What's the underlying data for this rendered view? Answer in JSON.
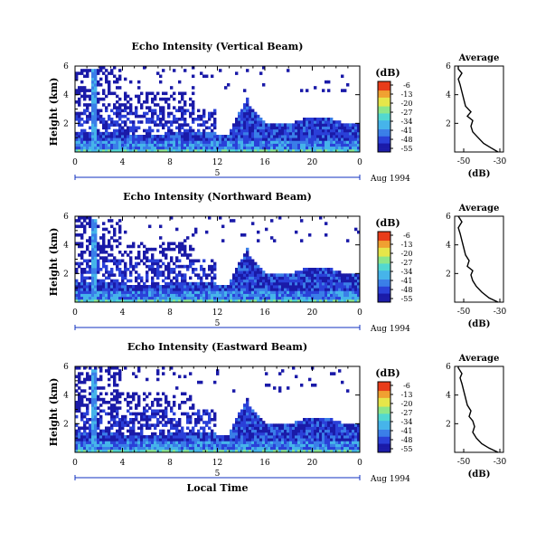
{
  "chart_data": [
    {
      "type": "heatmap",
      "title": "Echo Intensity (Vertical Beam)",
      "ylabel": "Height (km)",
      "xlabel": "",
      "y_ticks": [
        "6",
        "4",
        "2"
      ],
      "x_ticks": [
        "0",
        "4",
        "8",
        "12",
        "16",
        "20",
        "0"
      ],
      "xlim": [
        0,
        24
      ],
      "ylim": [
        0,
        6
      ],
      "day_label": "5",
      "date_label": "Aug 1994",
      "colorbar": {
        "unit": "(dB)",
        "ticks": [
          "-6",
          "-13",
          "-20",
          "-27",
          "-34",
          "-41",
          "-48",
          "-55"
        ]
      },
      "profile": {
        "title": "Average",
        "xlabel": "(dB)",
        "x_ticks": [
          "-50",
          "-30"
        ],
        "y_ticks": [
          "6",
          "4",
          "2"
        ],
        "xlim": [
          -55,
          -28
        ],
        "ylim": [
          0,
          6
        ],
        "points": [
          [
            -31,
            0
          ],
          [
            -35,
            0.3
          ],
          [
            -39,
            0.6
          ],
          [
            -42,
            1.0
          ],
          [
            -45,
            1.4
          ],
          [
            -46,
            1.8
          ],
          [
            -45,
            2.2
          ],
          [
            -48,
            2.5
          ],
          [
            -46,
            2.8
          ],
          [
            -49,
            3.2
          ],
          [
            -50,
            3.7
          ],
          [
            -51,
            4.2
          ],
          [
            -52,
            4.7
          ],
          [
            -53,
            5.1
          ],
          [
            -51,
            5.5
          ],
          [
            -53,
            5.8
          ],
          [
            -53,
            6.0
          ]
        ]
      }
    },
    {
      "type": "heatmap",
      "title": "Echo Intensity (Northward Beam)",
      "ylabel": "Height (km)",
      "xlabel": "",
      "y_ticks": [
        "6",
        "4",
        "2"
      ],
      "x_ticks": [
        "0",
        "4",
        "8",
        "12",
        "16",
        "20",
        "0"
      ],
      "xlim": [
        0,
        24
      ],
      "ylim": [
        0,
        6
      ],
      "day_label": "5",
      "date_label": "Aug 1994",
      "colorbar": {
        "unit": "(dB)",
        "ticks": [
          "-6",
          "-13",
          "-20",
          "-27",
          "-34",
          "-41",
          "-48",
          "-55"
        ]
      },
      "profile": {
        "title": "Average",
        "xlabel": "(dB)",
        "x_ticks": [
          "-50",
          "-30"
        ],
        "y_ticks": [
          "6",
          "4",
          "2"
        ],
        "xlim": [
          -55,
          -28
        ],
        "ylim": [
          0,
          6
        ],
        "points": [
          [
            -31,
            0
          ],
          [
            -36,
            0.3
          ],
          [
            -40,
            0.7
          ],
          [
            -43,
            1.1
          ],
          [
            -45,
            1.5
          ],
          [
            -46,
            1.9
          ],
          [
            -45,
            2.2
          ],
          [
            -48,
            2.5
          ],
          [
            -47,
            2.9
          ],
          [
            -49,
            3.3
          ],
          [
            -50,
            3.8
          ],
          [
            -51,
            4.3
          ],
          [
            -52,
            4.8
          ],
          [
            -53,
            5.2
          ],
          [
            -51,
            5.6
          ],
          [
            -53,
            6.0
          ]
        ]
      }
    },
    {
      "type": "heatmap",
      "title": "Echo Intensity (Eastward Beam)",
      "ylabel": "Height (km)",
      "xlabel": "Local Time",
      "y_ticks": [
        "6",
        "4",
        "2"
      ],
      "x_ticks": [
        "0",
        "4",
        "8",
        "12",
        "16",
        "20",
        "0"
      ],
      "xlim": [
        0,
        24
      ],
      "ylim": [
        0,
        6
      ],
      "day_label": "5",
      "date_label": "Aug 1994",
      "colorbar": {
        "unit": "(dB)",
        "ticks": [
          "-6",
          "-13",
          "-20",
          "-27",
          "-34",
          "-41",
          "-48",
          "-55"
        ]
      },
      "profile": {
        "title": "Average",
        "xlabel": "(dB)",
        "x_ticks": [
          "-50",
          "-30"
        ],
        "y_ticks": [
          "6",
          "4",
          "2"
        ],
        "xlim": [
          -55,
          -28
        ],
        "ylim": [
          0,
          6
        ],
        "points": [
          [
            -31,
            0
          ],
          [
            -36,
            0.3
          ],
          [
            -40,
            0.6
          ],
          [
            -43,
            1.0
          ],
          [
            -45,
            1.4
          ],
          [
            -44,
            1.8
          ],
          [
            -45,
            2.2
          ],
          [
            -47,
            2.5
          ],
          [
            -46,
            2.9
          ],
          [
            -48,
            3.3
          ],
          [
            -49,
            3.8
          ],
          [
            -50,
            4.3
          ],
          [
            -51,
            4.8
          ],
          [
            -52,
            5.2
          ],
          [
            -51,
            5.5
          ],
          [
            -53,
            5.9
          ],
          [
            -53,
            6.0
          ]
        ]
      }
    }
  ],
  "colors": {
    "colormap": [
      "#1a1aa8",
      "#2a40d8",
      "#3a7ee8",
      "#46b4ea",
      "#52d8d0",
      "#8ce68a",
      "#e6e64a",
      "#f0a030",
      "#e83c1a"
    ],
    "axis": "#000000",
    "day_marker": "#1030c0"
  }
}
